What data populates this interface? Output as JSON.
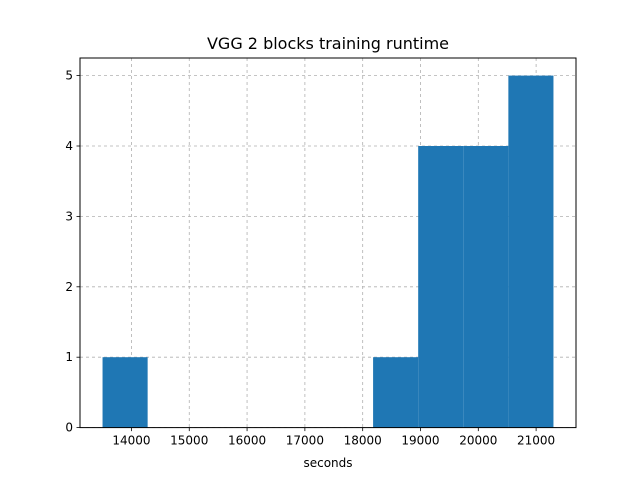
{
  "chart_data": {
    "type": "bar",
    "title": "VGG 2 blocks training runtime",
    "xlabel": "seconds",
    "ylabel": "",
    "bins": [
      {
        "start": 13500,
        "end": 14280,
        "count": 1
      },
      {
        "start": 14280,
        "end": 15060,
        "count": 0
      },
      {
        "start": 15060,
        "end": 15840,
        "count": 0
      },
      {
        "start": 15840,
        "end": 16620,
        "count": 0
      },
      {
        "start": 16620,
        "end": 17400,
        "count": 0
      },
      {
        "start": 17400,
        "end": 18180,
        "count": 0
      },
      {
        "start": 18180,
        "end": 18960,
        "count": 1
      },
      {
        "start": 18960,
        "end": 19740,
        "count": 4
      },
      {
        "start": 19740,
        "end": 20520,
        "count": 4
      },
      {
        "start": 20520,
        "end": 21300,
        "count": 5
      }
    ],
    "xlim": [
      13110,
      21690
    ],
    "ylim": [
      0,
      5.25
    ],
    "xticks": [
      14000,
      15000,
      16000,
      17000,
      18000,
      19000,
      20000,
      21000
    ],
    "xtick_labels": [
      "14000",
      "15000",
      "16000",
      "17000",
      "18000",
      "19000",
      "20000",
      "21000"
    ],
    "yticks": [
      0,
      1,
      2,
      3,
      4,
      5
    ],
    "ytick_labels": [
      "0",
      "1",
      "2",
      "3",
      "4",
      "5"
    ],
    "grid": true,
    "bar_color": "#1f77b4",
    "grid_color": "#b0b0b0"
  }
}
